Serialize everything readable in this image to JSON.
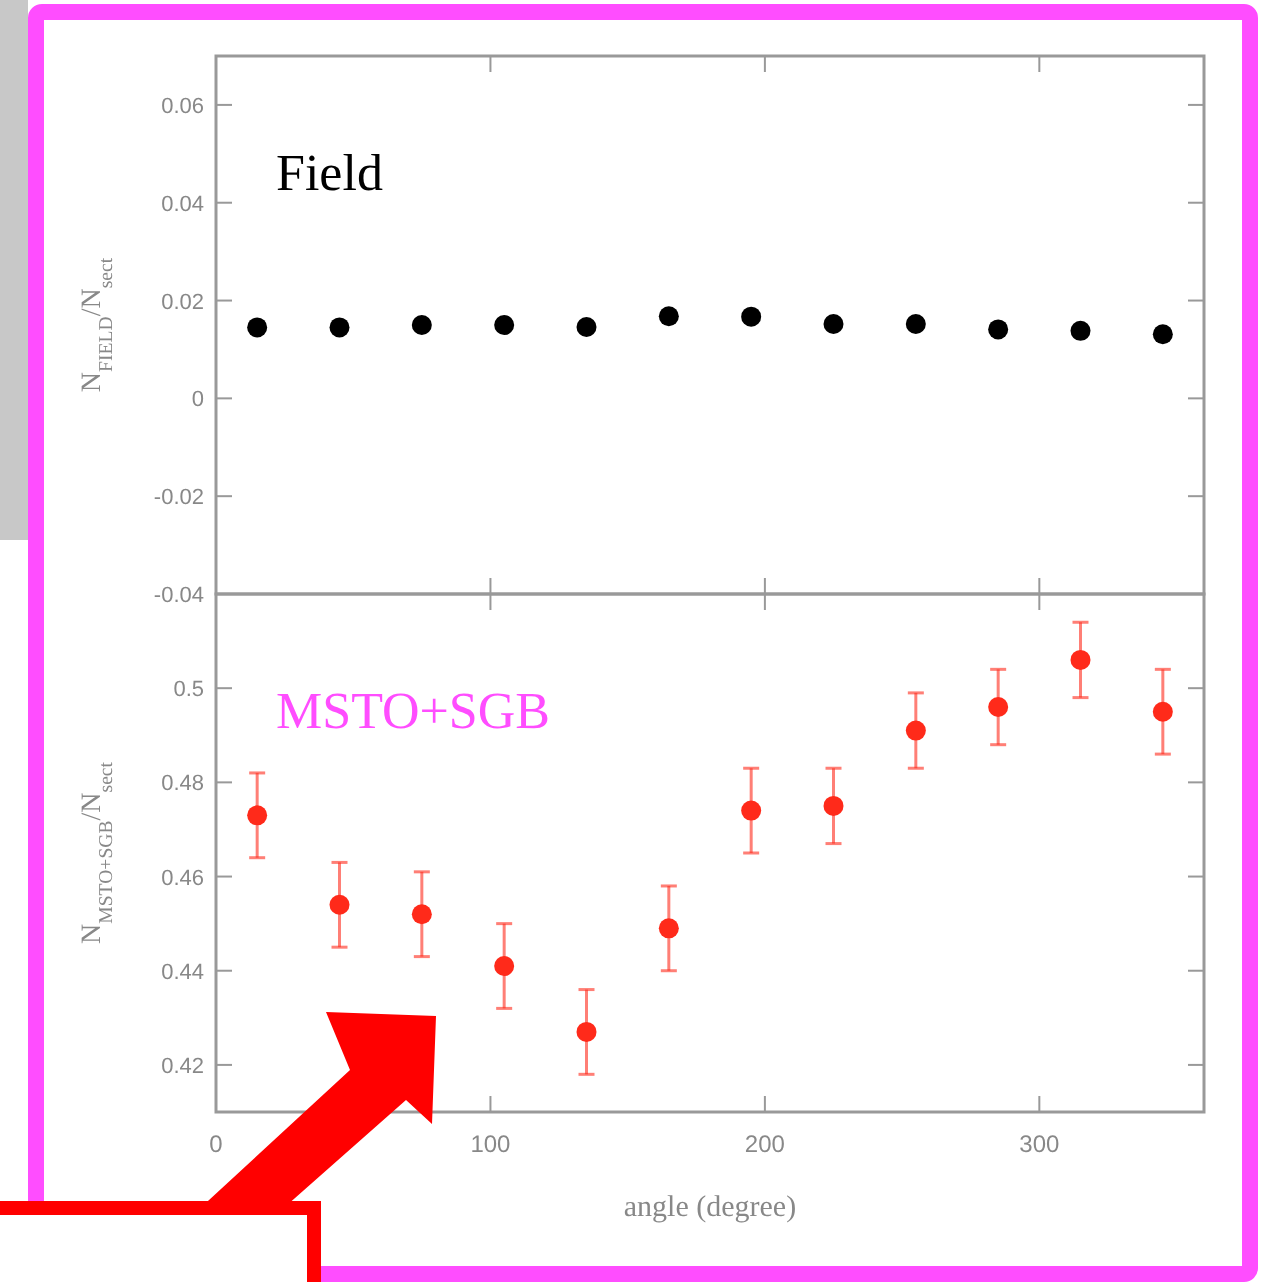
{
  "chart_data": [
    {
      "type": "scatter",
      "ylabel": "N$_{FIELD}$/N$_{sect}$",
      "annotations": [
        "Field"
      ],
      "x": [
        15,
        45,
        75,
        105,
        135,
        165,
        195,
        225,
        255,
        285,
        315,
        345
      ],
      "series": [
        {
          "color": "#000000",
          "values": [
            0.0145,
            0.0145,
            0.015,
            0.015,
            0.0146,
            0.0168,
            0.0167,
            0.0152,
            0.0152,
            0.0141,
            0.0138,
            0.0131
          ]
        }
      ],
      "xlim": [
        0,
        360
      ],
      "xticks": [
        0,
        100,
        200,
        300
      ],
      "ylim": [
        -0.04,
        0.07
      ],
      "yticks": [
        -0.04,
        -0.02,
        0,
        0.02,
        0.04,
        0.06
      ],
      "tick_labels": "y",
      "marker": "circle"
    },
    {
      "type": "scatter",
      "xlabel": "angle (degree)",
      "ylabel": "N$_{MSTO+SGB}$/N$_{sect}$",
      "annotations": [
        "MSTO+SGB"
      ],
      "x": [
        15,
        45,
        75,
        105,
        135,
        165,
        195,
        225,
        255,
        285,
        315,
        345
      ],
      "series": [
        {
          "color": "#ff2a1a",
          "values": [
            0.473,
            0.454,
            0.452,
            0.441,
            0.427,
            0.449,
            0.474,
            0.475,
            0.491,
            0.496,
            0.506,
            0.495
          ],
          "errors": [
            0.009,
            0.009,
            0.009,
            0.009,
            0.009,
            0.009,
            0.009,
            0.008,
            0.008,
            0.008,
            0.008,
            0.009
          ]
        }
      ],
      "xlim": [
        0,
        360
      ],
      "xticks": [
        0,
        100,
        200,
        300
      ],
      "ylim": [
        0.41,
        0.52
      ],
      "yticks": [
        0.42,
        0.44,
        0.46,
        0.48,
        0.5
      ],
      "marker": "circle"
    }
  ]
}
